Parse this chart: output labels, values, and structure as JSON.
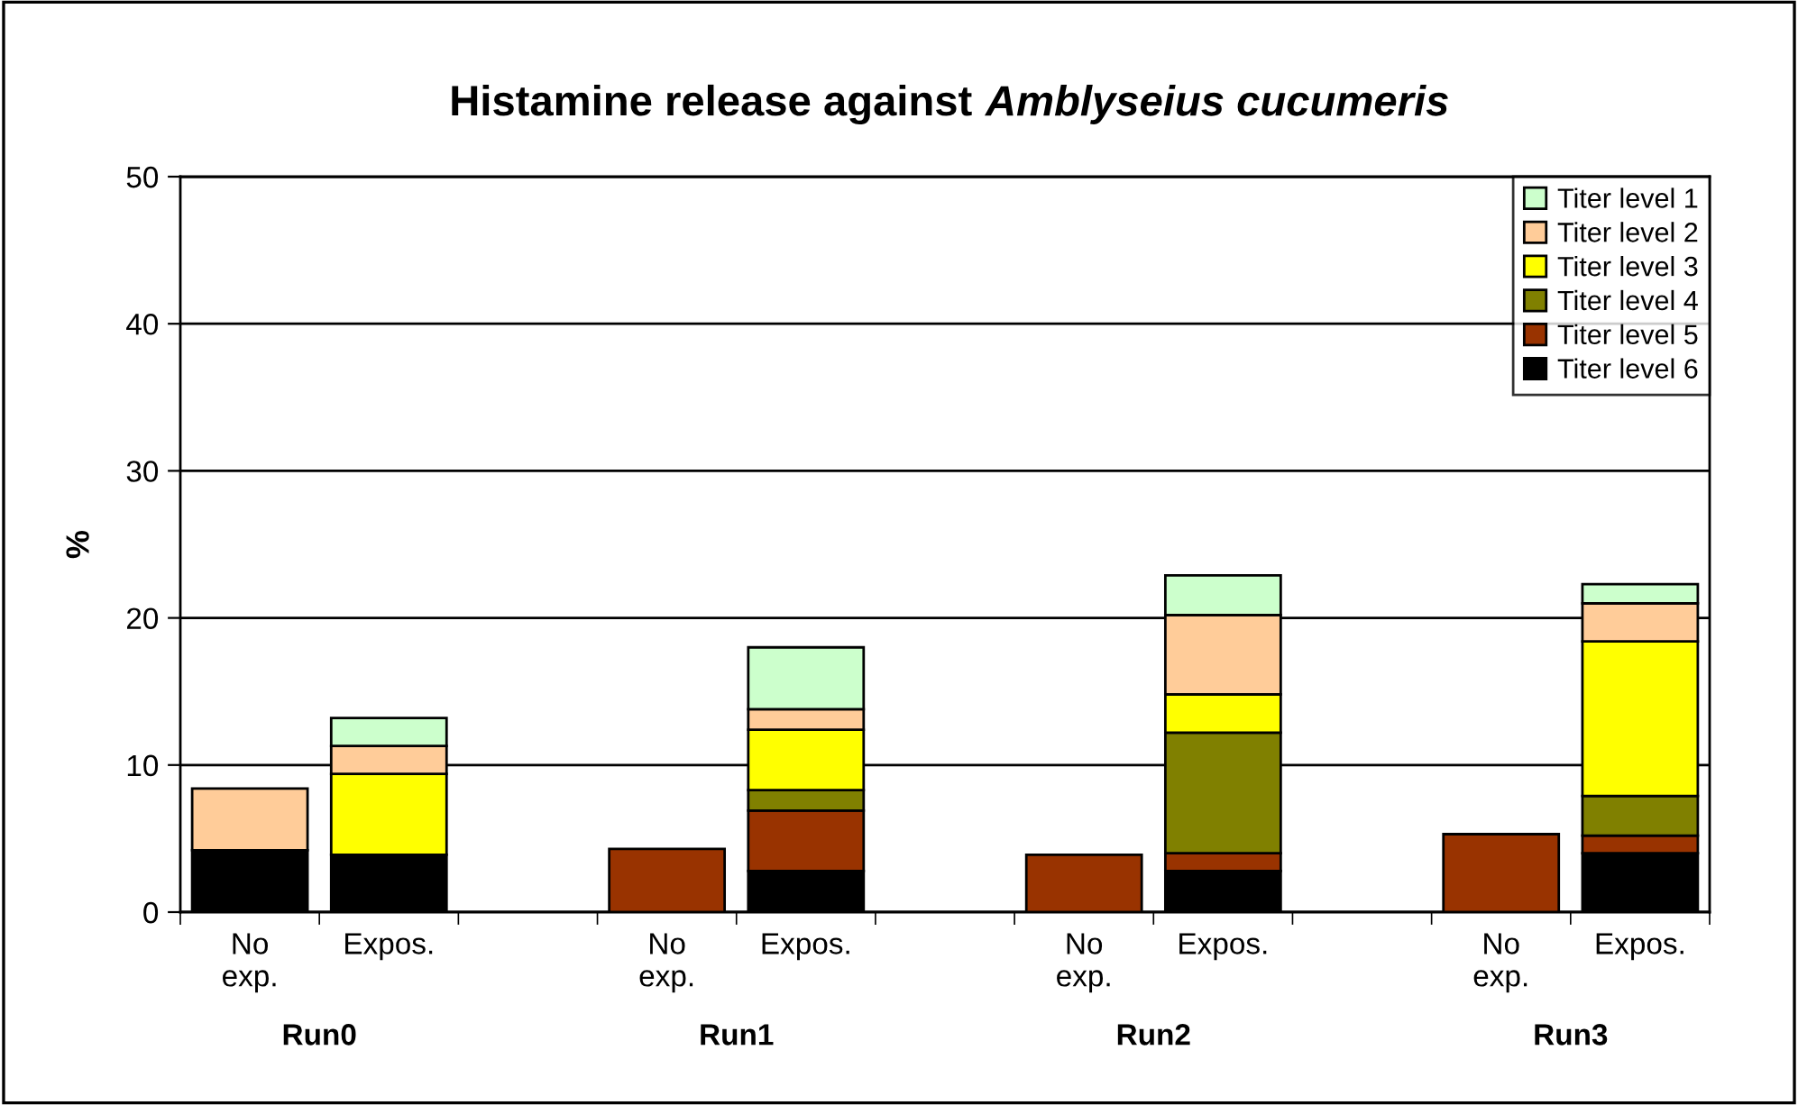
{
  "chart_data": {
    "type": "bar",
    "stacked": true,
    "title": "Histamine release against Amblyseius cucumeris",
    "ylabel": "%",
    "categories": [
      "No\nexp.",
      "Expos.",
      null,
      "No\nexp.",
      "Expos.",
      null,
      "No\nexp.",
      "Expos.",
      null,
      "No\nexp.",
      "Expos."
    ],
    "series": [
      {
        "name": "Titer level 6",
        "color": "#000000",
        "values": [
          4.2,
          3.9,
          null,
          null,
          2.8,
          null,
          null,
          2.8,
          null,
          null,
          4.0
        ]
      },
      {
        "name": "Titer level 5",
        "color": "#993300",
        "values": [
          null,
          null,
          null,
          4.3,
          4.1,
          null,
          3.9,
          1.2,
          null,
          5.3,
          1.2
        ]
      },
      {
        "name": "Titer level 4",
        "color": "#808000",
        "values": [
          null,
          null,
          null,
          null,
          1.4,
          null,
          null,
          8.2,
          null,
          null,
          2.7
        ]
      },
      {
        "name": "Titer level 3",
        "color": "#ffff00",
        "values": [
          null,
          5.5,
          null,
          null,
          4.1,
          null,
          null,
          2.6,
          null,
          null,
          10.5
        ]
      },
      {
        "name": "Titer level 2",
        "color": "#ffcc99",
        "values": [
          4.2,
          1.9,
          null,
          null,
          1.4,
          null,
          null,
          5.4,
          null,
          null,
          2.6
        ]
      },
      {
        "name": "Titer level 1",
        "color": "#ccffcc",
        "values": [
          null,
          1.9,
          null,
          null,
          4.2,
          null,
          null,
          2.7,
          null,
          null,
          1.3
        ]
      }
    ],
    "annotations": [
      "Run0",
      "Run1",
      "Run2",
      "Run3"
    ],
    "ylim": [
      0,
      50
    ],
    "yticks": [
      0,
      10,
      20,
      30,
      40,
      50
    ],
    "grid": "y",
    "legend": "top right"
  }
}
